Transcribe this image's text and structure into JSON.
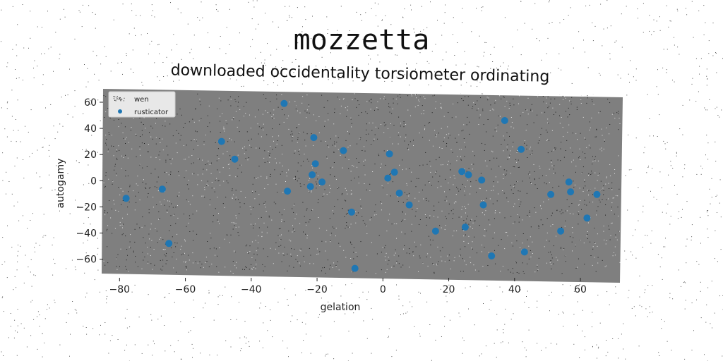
{
  "chart_data": {
    "type": "scatter",
    "title": "mozzetta",
    "subtitle": "downloaded occidentality torsiometer ordinating",
    "xlabel": "gelation",
    "ylabel": "autogamy",
    "xlim": [
      -85,
      72
    ],
    "ylim": [
      -71,
      67
    ],
    "xticks": [
      -80,
      -60,
      -40,
      -20,
      0,
      20,
      40,
      60
    ],
    "yticks": [
      -60,
      -40,
      -20,
      0,
      20,
      40,
      60
    ],
    "grid": false,
    "legend_position": "top-left",
    "colors": {
      "plot_background": "#7f7f7f",
      "marker": "#1f77b4",
      "noise": "#1e1e1e",
      "noise_light": "#e6e6e6"
    },
    "series": [
      {
        "name": "wen",
        "style": "noise",
        "x": [],
        "y": []
      },
      {
        "name": "rusticator",
        "style": "markers",
        "x": [
          -78,
          -67,
          -65,
          -49,
          -45,
          -30,
          -29,
          -22,
          -21.5,
          -21,
          -20.5,
          -18.5,
          -12,
          -9.5,
          -8.5,
          1.5,
          2,
          3.5,
          5,
          8,
          16,
          24,
          25,
          26,
          30,
          30.5,
          33,
          37,
          42,
          43,
          51,
          54,
          56.5,
          57,
          62,
          65
        ],
        "y": [
          -13.5,
          -6.5,
          -48,
          30,
          16.5,
          59,
          -8,
          -4.5,
          4.5,
          33,
          13,
          -1,
          23,
          -24,
          -67,
          2,
          20.5,
          6.5,
          -9.5,
          -18.5,
          -38.5,
          7,
          -35.5,
          4.5,
          0.5,
          -18.5,
          -57.5,
          46,
          24,
          -54.5,
          -10.5,
          -38.5,
          -1,
          -8.5,
          -28.5,
          -10.5
        ]
      }
    ]
  }
}
